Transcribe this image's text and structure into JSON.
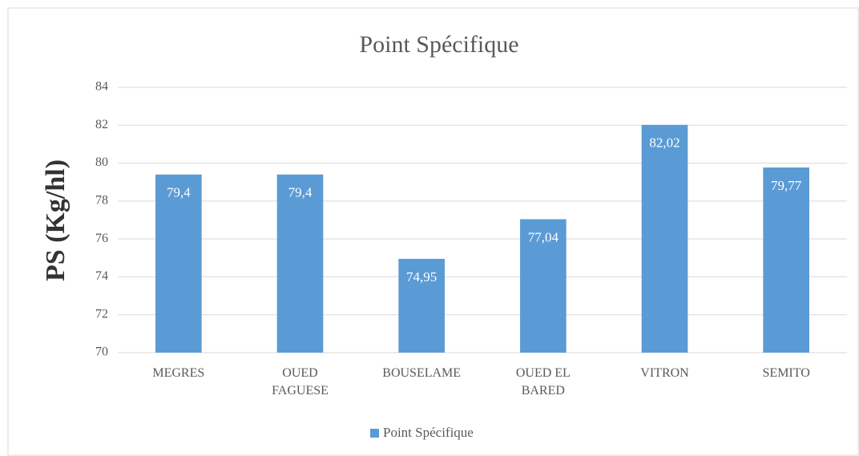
{
  "chart_data": {
    "type": "bar",
    "title": "Point Spécifique",
    "y_label": "PS (Kg/hl)",
    "categories": [
      "MEGRES",
      "OUED\nFAGUESE",
      "BOUSELAME",
      "OUED EL\nBARED",
      "VITRON",
      "SEMITO"
    ],
    "series": [
      {
        "name": "Point Spécifique",
        "color": "#5b9bd5",
        "values": [
          79.4,
          79.4,
          74.95,
          77.04,
          82.02,
          79.77
        ],
        "value_labels": [
          "79,4",
          "79,4",
          "74,95",
          "77,04",
          "82,02",
          "79,77"
        ]
      }
    ],
    "ylim": [
      70,
      84
    ],
    "yticks": [
      70,
      72,
      74,
      76,
      78,
      80,
      82,
      84
    ],
    "grid": true,
    "legend": "bottom"
  }
}
